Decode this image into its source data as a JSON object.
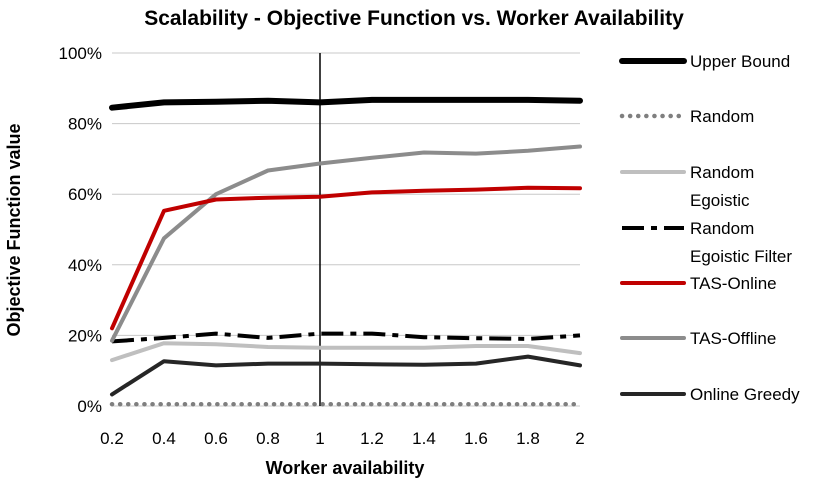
{
  "chart_data": {
    "type": "line",
    "title": "Scalability - Objective Function vs. Worker Availability",
    "xlabel": "Worker availability",
    "ylabel": "Objective Function value",
    "x": [
      0.2,
      0.4,
      0.6,
      0.8,
      1,
      1.2,
      1.4,
      1.6,
      1.8,
      2
    ],
    "x_tick_labels": [
      "0.2",
      "0.4",
      "0.6",
      "0.8",
      "1",
      "1.2",
      "1.4",
      "1.6",
      "1.8",
      "2"
    ],
    "ylim": [
      0,
      100
    ],
    "y_tick_values": [
      0,
      20,
      40,
      60,
      80,
      100
    ],
    "y_tick_labels": [
      "0%",
      "20%",
      "40%",
      "60%",
      "80%",
      "100%"
    ],
    "grid": "horizontal",
    "reference_line_x": 1,
    "legend_position": "right",
    "series": [
      {
        "name": "Upper Bound",
        "color": "#000000",
        "style": "solid-thick",
        "values": [
          84.5,
          86,
          86.2,
          86.5,
          86,
          86.7,
          86.7,
          86.7,
          86.7,
          86.5
        ]
      },
      {
        "name": "Random",
        "color": "#7f7f7f",
        "style": "dotted",
        "values": [
          0.5,
          0.5,
          0.5,
          0.5,
          0.5,
          0.5,
          0.5,
          0.5,
          0.5,
          0.5
        ]
      },
      {
        "name": "Random Egoistic",
        "color": "#bfbfbf",
        "style": "solid",
        "values": [
          13,
          17.8,
          17.5,
          16.7,
          16.5,
          16.5,
          16.5,
          17,
          17,
          15
        ]
      },
      {
        "name": "Random Egoistic Filter",
        "color": "#000000",
        "style": "dashdot",
        "values": [
          18.3,
          19.3,
          20.5,
          19.3,
          20.5,
          20.5,
          19.5,
          19.2,
          19,
          20
        ]
      },
      {
        "name": "TAS-Online",
        "color": "#c00000",
        "style": "solid",
        "values": [
          22,
          55.3,
          58.5,
          59,
          59.3,
          60.5,
          61,
          61.3,
          61.8,
          61.7
        ]
      },
      {
        "name": "TAS-Offline",
        "color": "#8c8c8c",
        "style": "solid",
        "values": [
          18.5,
          47.5,
          60,
          66.7,
          68.7,
          70.3,
          71.8,
          71.5,
          72.3,
          73.5
        ]
      },
      {
        "name": "Online Greedy",
        "color": "#262626",
        "style": "solid",
        "values": [
          3.3,
          12.7,
          11.5,
          12,
          12,
          11.8,
          11.7,
          12,
          14,
          11.5
        ]
      }
    ],
    "legend": [
      {
        "lines": [
          "Upper Bound"
        ]
      },
      {
        "lines": [
          "Random"
        ]
      },
      {
        "lines": [
          "Random",
          "Egoistic"
        ]
      },
      {
        "lines": [
          "Random",
          "Egoistic Filter"
        ]
      },
      {
        "lines": [
          "TAS-Online"
        ]
      },
      {
        "lines": [
          "TAS-Offline"
        ]
      },
      {
        "lines": [
          "Online Greedy"
        ]
      }
    ]
  }
}
